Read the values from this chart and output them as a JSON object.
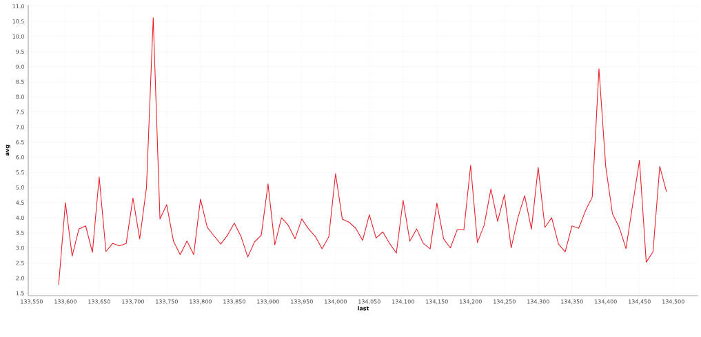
{
  "chart_data": {
    "type": "line",
    "xlabel": "last",
    "ylabel": "avg",
    "x": [
      133590,
      133600,
      133610,
      133620,
      133630,
      133640,
      133650,
      133660,
      133670,
      133680,
      133690,
      133700,
      133710,
      133720,
      133730,
      133740,
      133750,
      133760,
      133770,
      133780,
      133790,
      133800,
      133810,
      133820,
      133830,
      133840,
      133850,
      133860,
      133870,
      133880,
      133890,
      133900,
      133910,
      133920,
      133930,
      133940,
      133950,
      133960,
      133970,
      133980,
      133990,
      134000,
      134010,
      134020,
      134030,
      134040,
      134050,
      134060,
      134070,
      134080,
      134090,
      134100,
      134110,
      134120,
      134130,
      134140,
      134150,
      134160,
      134170,
      134180,
      134190,
      134200,
      134210,
      134220,
      134230,
      134240,
      134250,
      134260,
      134270,
      134280,
      134290,
      134300,
      134310,
      134320,
      134330,
      134340,
      134350,
      134360,
      134370,
      134380,
      134390,
      134400,
      134410,
      134420,
      134430,
      134440,
      134450,
      134460,
      134470,
      134480,
      134490
    ],
    "series": [
      {
        "color": "#e8232b",
        "values": [
          1.78,
          4.5,
          2.73,
          3.63,
          3.73,
          2.85,
          5.35,
          2.88,
          3.15,
          3.07,
          3.15,
          4.65,
          3.3,
          5.0,
          10.62,
          3.96,
          4.43,
          3.22,
          2.78,
          3.23,
          2.78,
          4.62,
          3.68,
          3.4,
          3.13,
          3.42,
          3.82,
          3.38,
          2.7,
          3.2,
          3.42,
          5.12,
          3.1,
          4.0,
          3.75,
          3.3,
          3.96,
          3.63,
          3.38,
          2.97,
          3.37,
          5.46,
          3.95,
          3.85,
          3.65,
          3.25,
          4.1,
          3.33,
          3.53,
          3.15,
          2.83,
          4.58,
          3.22,
          3.63,
          3.15,
          2.97,
          4.48,
          3.3,
          3.0,
          3.6,
          3.6,
          5.73,
          3.18,
          3.75,
          4.95,
          3.88,
          4.76,
          3.0,
          4.0,
          4.73,
          3.62,
          5.67,
          3.68,
          4.0,
          3.13,
          2.87,
          3.73,
          3.65,
          4.23,
          4.68,
          8.93,
          5.7,
          4.13,
          3.68,
          2.98,
          4.45,
          5.9,
          2.53,
          2.87,
          5.7,
          4.86
        ]
      }
    ],
    "xlim": [
      133545,
      134537
    ],
    "ylim": [
      1.42,
      11.05
    ],
    "xticks": [
      {
        "value": 133550,
        "label": "133,550"
      },
      {
        "value": 133600,
        "label": "133,600"
      },
      {
        "value": 133650,
        "label": "133,650"
      },
      {
        "value": 133700,
        "label": "133,700"
      },
      {
        "value": 133750,
        "label": "133,750"
      },
      {
        "value": 133800,
        "label": "133,800"
      },
      {
        "value": 133850,
        "label": "133,850"
      },
      {
        "value": 133900,
        "label": "133,900"
      },
      {
        "value": 133950,
        "label": "133,950"
      },
      {
        "value": 134000,
        "label": "134,000"
      },
      {
        "value": 134050,
        "label": "134,050"
      },
      {
        "value": 134100,
        "label": "134,100"
      },
      {
        "value": 134150,
        "label": "134,150"
      },
      {
        "value": 134200,
        "label": "134,200"
      },
      {
        "value": 134250,
        "label": "134,250"
      },
      {
        "value": 134300,
        "label": "134,300"
      },
      {
        "value": 134350,
        "label": "134,350"
      },
      {
        "value": 134400,
        "label": "134,400"
      },
      {
        "value": 134450,
        "label": "134,450"
      },
      {
        "value": 134500,
        "label": "134,500"
      }
    ],
    "yticks": [
      {
        "value": 1.5,
        "label": "1.5"
      },
      {
        "value": 2,
        "label": "2.0"
      },
      {
        "value": 2.5,
        "label": "2.5"
      },
      {
        "value": 3,
        "label": "3.0"
      },
      {
        "value": 3.5,
        "label": "3.5"
      },
      {
        "value": 4,
        "label": "4.0"
      },
      {
        "value": 4.5,
        "label": "4.5"
      },
      {
        "value": 5,
        "label": "5.0"
      },
      {
        "value": 5.5,
        "label": "5.5"
      },
      {
        "value": 6,
        "label": "6.0"
      },
      {
        "value": 6.5,
        "label": "6.5"
      },
      {
        "value": 7,
        "label": "7.0"
      },
      {
        "value": 7.5,
        "label": "7.5"
      },
      {
        "value": 8,
        "label": "8.0"
      },
      {
        "value": 8.5,
        "label": "8.5"
      },
      {
        "value": 9,
        "label": "9.0"
      },
      {
        "value": 9.5,
        "label": "9.5"
      },
      {
        "value": 10,
        "label": "10.0"
      },
      {
        "value": 10.5,
        "label": "10.5"
      },
      {
        "value": 11,
        "label": "11.0"
      }
    ],
    "grid": true
  }
}
